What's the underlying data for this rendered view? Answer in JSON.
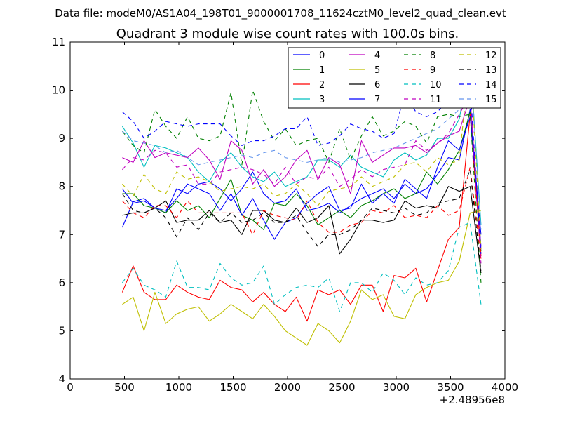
{
  "figure": {
    "suptitle": "Data file: modeM0/AS1A04_198T01_9000001708_11624cztM0_level2_quad_clean.evt"
  },
  "chart_data": {
    "type": "line",
    "title": "Quadrant 3 module wise count rates with 100.0s bins.",
    "xlabel": "",
    "ylabel": "",
    "x_offset_label": "+2.48956e8",
    "xlim": [
      0,
      4000
    ],
    "ylim": [
      4,
      11
    ],
    "x_ticks": [
      0,
      500,
      1000,
      1500,
      2000,
      2500,
      3000,
      3500,
      4000
    ],
    "x_tick_labels": [
      "0",
      "500",
      "1000",
      "1500",
      "2000",
      "2500",
      "3000",
      "3500",
      "4000"
    ],
    "y_ticks": [
      4,
      5,
      6,
      7,
      8,
      9,
      10,
      11
    ],
    "y_tick_labels": [
      "4",
      "5",
      "6",
      "7",
      "8",
      "9",
      "10",
      "11"
    ],
    "grid": false,
    "legend_position": "top-right",
    "x": [
      480,
      580,
      680,
      780,
      880,
      980,
      1080,
      1180,
      1280,
      1380,
      1480,
      1580,
      1680,
      1780,
      1880,
      1980,
      2080,
      2180,
      2280,
      2380,
      2480,
      2580,
      2680,
      2780,
      2880,
      2980,
      3080,
      3180,
      3280,
      3380,
      3480,
      3580,
      3680,
      3780
    ],
    "series": [
      {
        "name": "0",
        "color": "#0000ff",
        "dash": "solid",
        "values": [
          7.15,
          7.68,
          7.75,
          7.55,
          7.45,
          7.95,
          7.85,
          8.05,
          8.1,
          7.95,
          7.7,
          7.95,
          8.3,
          7.85,
          7.65,
          7.7,
          7.95,
          7.5,
          7.55,
          7.65,
          7.45,
          7.6,
          7.75,
          7.85,
          7.95,
          7.75,
          8.05,
          7.85,
          7.95,
          8.25,
          8.6,
          8.55,
          9.6,
          6.75
        ]
      },
      {
        "name": "1",
        "color": "#008000",
        "dash": "solid",
        "values": [
          7.85,
          7.85,
          7.6,
          7.55,
          7.45,
          7.7,
          7.5,
          7.6,
          7.35,
          7.75,
          8.15,
          7.4,
          7.3,
          7.1,
          7.65,
          7.6,
          7.85,
          7.6,
          7.2,
          7.35,
          7.5,
          7.35,
          7.6,
          7.7,
          7.85,
          7.95,
          7.75,
          7.85,
          8.3,
          8.05,
          8.35,
          8.75,
          9.55,
          6.65
        ]
      },
      {
        "name": "2",
        "color": "#ff0000",
        "dash": "solid",
        "values": [
          5.8,
          6.35,
          5.8,
          5.65,
          5.65,
          5.95,
          5.8,
          5.7,
          5.65,
          6.05,
          5.9,
          5.85,
          5.6,
          5.8,
          5.55,
          5.4,
          5.7,
          5.2,
          5.85,
          5.75,
          5.85,
          5.55,
          5.95,
          5.95,
          5.4,
          6.15,
          6.1,
          6.3,
          5.6,
          6.25,
          6.9,
          7.15,
          9.5,
          6.55
        ]
      },
      {
        "name": "3",
        "color": "#00bfbf",
        "dash": "solid",
        "values": [
          9.25,
          8.9,
          8.4,
          8.85,
          8.8,
          8.7,
          8.6,
          8.3,
          8.1,
          8.5,
          8.7,
          8.4,
          8.2,
          8.1,
          8.3,
          8.0,
          8.1,
          8.2,
          8.55,
          8.55,
          8.4,
          8.65,
          8.4,
          8.3,
          8.2,
          8.55,
          8.7,
          8.55,
          8.65,
          9.0,
          9.0,
          9.4,
          10.65,
          7.2
        ]
      },
      {
        "name": "4",
        "color": "#bf00bf",
        "dash": "solid",
        "values": [
          8.6,
          8.5,
          8.95,
          8.6,
          8.7,
          8.65,
          8.6,
          8.8,
          8.55,
          8.15,
          8.95,
          8.75,
          8.05,
          8.35,
          8.0,
          8.2,
          8.55,
          8.75,
          8.15,
          8.6,
          8.45,
          7.85,
          8.95,
          8.5,
          8.65,
          8.8,
          8.8,
          8.85,
          8.7,
          8.9,
          9.05,
          9.15,
          9.85,
          6.7
        ]
      },
      {
        "name": "5",
        "color": "#bfbf00",
        "dash": "solid",
        "values": [
          5.55,
          5.7,
          5.0,
          5.8,
          5.15,
          5.35,
          5.45,
          5.5,
          5.2,
          5.35,
          5.55,
          5.4,
          5.25,
          5.55,
          5.3,
          5.0,
          4.85,
          4.7,
          5.15,
          5.0,
          4.75,
          5.2,
          5.85,
          5.65,
          5.75,
          5.3,
          5.25,
          5.75,
          5.9,
          6.0,
          6.05,
          6.45,
          7.45,
          7.5
        ]
      },
      {
        "name": "6",
        "color": "#000000",
        "dash": "solid",
        "values": [
          7.4,
          7.45,
          7.45,
          7.55,
          7.7,
          7.25,
          7.3,
          7.3,
          7.5,
          7.25,
          7.3,
          7.0,
          7.5,
          7.5,
          7.3,
          7.25,
          7.55,
          7.25,
          7.35,
          7.6,
          6.6,
          6.9,
          7.3,
          7.3,
          7.25,
          7.3,
          7.7,
          7.55,
          7.6,
          7.55,
          8.0,
          7.9,
          8.0,
          6.2
        ]
      },
      {
        "name": "7",
        "color": "#0000ff",
        "dash": "solid",
        "values": [
          7.95,
          7.65,
          7.7,
          7.55,
          7.5,
          7.75,
          8.05,
          7.95,
          7.85,
          7.5,
          7.85,
          7.4,
          7.75,
          7.3,
          6.9,
          7.25,
          7.35,
          7.65,
          7.85,
          8.0,
          7.5,
          7.55,
          8.05,
          7.65,
          7.85,
          7.65,
          8.15,
          7.95,
          7.75,
          8.4,
          8.95,
          8.75,
          9.45,
          7.0
        ]
      },
      {
        "name": "8",
        "color": "#008000",
        "dash": "dashed",
        "values": [
          9.15,
          8.85,
          8.7,
          9.6,
          9.25,
          9.0,
          9.45,
          9.0,
          8.95,
          9.05,
          9.95,
          8.45,
          10.0,
          9.35,
          8.95,
          9.2,
          8.85,
          8.95,
          9.0,
          8.5,
          9.2,
          8.55,
          9.05,
          9.45,
          9.05,
          9.15,
          9.35,
          9.25,
          8.9,
          9.45,
          9.5,
          9.45,
          9.5,
          6.0
        ]
      },
      {
        "name": "9",
        "color": "#ff0000",
        "dash": "dashed",
        "values": [
          7.7,
          7.45,
          7.35,
          7.6,
          7.6,
          7.35,
          7.7,
          7.45,
          7.45,
          7.45,
          7.45,
          7.45,
          7.0,
          7.5,
          7.4,
          7.35,
          7.3,
          7.7,
          7.25,
          7.05,
          7.05,
          7.2,
          7.25,
          7.5,
          7.45,
          7.6,
          7.35,
          7.4,
          7.35,
          7.6,
          7.4,
          7.5,
          8.4,
          6.5
        ]
      },
      {
        "name": "10",
        "color": "#00bfbf",
        "dash": "dashed",
        "values": [
          6.0,
          6.3,
          5.95,
          5.85,
          5.7,
          6.45,
          5.9,
          5.9,
          5.85,
          6.4,
          6.1,
          5.95,
          6.0,
          6.35,
          5.55,
          5.75,
          5.9,
          5.95,
          5.9,
          6.1,
          5.4,
          6.0,
          6.0,
          5.8,
          6.2,
          6.05,
          5.75,
          6.1,
          5.95,
          6.0,
          6.25,
          7.15,
          7.25,
          5.55
        ]
      },
      {
        "name": "11",
        "color": "#bf00bf",
        "dash": "dashed",
        "values": [
          8.35,
          8.6,
          8.55,
          8.75,
          8.7,
          8.4,
          8.45,
          8.05,
          8.05,
          8.3,
          8.35,
          8.4,
          8.35,
          8.25,
          8.05,
          8.4,
          8.05,
          8.2,
          8.15,
          8.4,
          8.0,
          8.15,
          8.35,
          8.2,
          8.35,
          8.4,
          8.45,
          8.95,
          8.75,
          8.9,
          9.1,
          9.5,
          9.9,
          6.4
        ]
      },
      {
        "name": "12",
        "color": "#bfbf00",
        "dash": "dashed",
        "values": [
          8.05,
          7.8,
          8.25,
          7.95,
          7.85,
          8.3,
          8.15,
          8.2,
          8.1,
          7.9,
          7.95,
          8.0,
          7.95,
          8.05,
          7.8,
          7.85,
          8.05,
          7.85,
          7.6,
          7.9,
          7.95,
          8.0,
          8.2,
          8.0,
          8.1,
          8.2,
          8.45,
          8.5,
          8.3,
          8.6,
          8.45,
          8.55,
          10.75,
          6.7
        ]
      },
      {
        "name": "13",
        "color": "#000000",
        "dash": "dashed",
        "values": [
          7.85,
          7.5,
          7.45,
          7.55,
          7.35,
          6.95,
          7.35,
          7.1,
          7.45,
          7.25,
          7.45,
          7.25,
          7.3,
          7.45,
          7.25,
          7.25,
          7.4,
          7.05,
          6.75,
          7.0,
          7.0,
          7.1,
          7.3,
          7.55,
          7.5,
          7.45,
          7.55,
          7.4,
          7.45,
          7.65,
          7.7,
          7.75,
          8.35,
          6.25
        ]
      },
      {
        "name": "14",
        "color": "#0000ff",
        "dash": "dashed",
        "values": [
          9.55,
          9.35,
          9.0,
          9.15,
          9.35,
          9.3,
          9.25,
          9.3,
          9.3,
          9.3,
          9.05,
          8.85,
          8.95,
          8.95,
          9.05,
          9.2,
          9.2,
          9.45,
          8.85,
          8.9,
          9.05,
          9.3,
          9.2,
          9.15,
          9.0,
          9.1,
          9.95,
          9.55,
          9.45,
          9.55,
          9.8,
          9.85,
          10.1,
          6.6
        ]
      },
      {
        "name": "15",
        "color": "#6495ed",
        "dash": "dashed",
        "values": [
          9.15,
          8.95,
          8.9,
          8.85,
          8.7,
          8.75,
          8.6,
          8.45,
          8.5,
          8.55,
          8.6,
          8.65,
          8.6,
          8.7,
          8.75,
          8.6,
          8.55,
          8.5,
          8.55,
          8.6,
          8.5,
          8.55,
          8.6,
          8.7,
          8.75,
          8.8,
          8.9,
          9.0,
          9.1,
          9.2,
          9.4,
          9.6,
          10.7,
          7.1
        ]
      }
    ]
  }
}
